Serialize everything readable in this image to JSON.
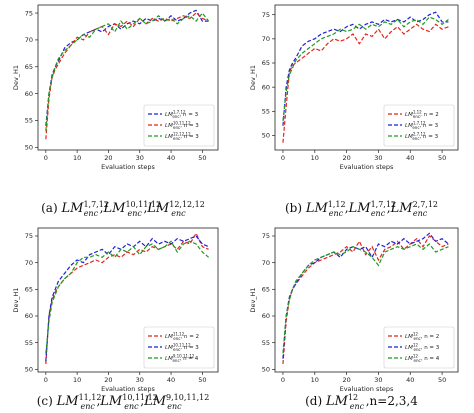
{
  "chart_data": [
    {
      "type": "line",
      "xlabel": "Evaluation steps",
      "ylabel": "Dev_H1",
      "legend": "lower right",
      "caption": {
        "label": "(a)",
        "parts": [
          {
            "base": "LM",
            "sup": "1,7,12",
            "sub": "enc"
          },
          {
            "text": ","
          },
          {
            "base": "LM",
            "sup": "10,11,12",
            "sub": "enc"
          },
          {
            "text": ","
          },
          {
            "base": "LM",
            "sup": "12,12,12",
            "sub": "enc"
          }
        ]
      },
      "xlim": [
        -2.5,
        55
      ],
      "ylim": [
        49.5,
        76.5
      ],
      "xticks": [
        0,
        10,
        20,
        30,
        40,
        50
      ],
      "yticks": [
        50,
        55,
        60,
        65,
        70,
        75
      ],
      "x": [
        0,
        1,
        2,
        3,
        4,
        6,
        8,
        10,
        12,
        14,
        16,
        18,
        20,
        22,
        24,
        26,
        28,
        30,
        32,
        34,
        36,
        38,
        40,
        42,
        44,
        46,
        48,
        50,
        52
      ],
      "series": [
        {
          "name": "LM",
          "sub": "enc",
          "sup": "1,7,12",
          "note": ", n = 3",
          "color": "#1f1fd6",
          "values": [
            54,
            60,
            63.5,
            65,
            66,
            68.5,
            69.5,
            70,
            71,
            71.5,
            72,
            71.5,
            72.5,
            73,
            72,
            73,
            73.5,
            73,
            74,
            73.5,
            74,
            73.5,
            74.5,
            73.5,
            74,
            75,
            75.5,
            73.5,
            73.5
          ]
        },
        {
          "name": "LM",
          "sub": "enc",
          "sup": "10,11,12",
          "note": ", n = 3",
          "color": "#e0261c",
          "values": [
            51.5,
            59,
            63,
            64.5,
            65.5,
            67.5,
            69,
            70.5,
            70,
            71.5,
            72,
            72.5,
            71,
            73,
            72.5,
            73.5,
            72.5,
            74,
            73,
            74,
            73.5,
            74,
            73.5,
            74,
            74.5,
            74,
            75,
            74,
            73.5
          ]
        },
        {
          "name": "LM",
          "sub": "enc",
          "sup": "12,12,12",
          "note": ", n = 3",
          "color": "#1f9a1f",
          "values": [
            53,
            60,
            63,
            65,
            66.5,
            68,
            69,
            70,
            71,
            70.5,
            72,
            72.5,
            73,
            71.5,
            73.5,
            72,
            73,
            74,
            73,
            73.5,
            74.5,
            73.5,
            74,
            73,
            74,
            74.5,
            73.5,
            75,
            73.5
          ]
        }
      ]
    },
    {
      "type": "line",
      "xlabel": "Evaluation steps",
      "ylabel": "Dev_H1",
      "legend": "lower right",
      "caption": {
        "label": "(b)",
        "parts": [
          {
            "base": "LM",
            "sup": "1,12",
            "sub": "enc"
          },
          {
            "text": ","
          },
          {
            "base": "LM",
            "sup": "1,7,12",
            "sub": "enc"
          },
          {
            "text": ","
          },
          {
            "base": "LM",
            "sup": "2,7,12",
            "sub": "enc"
          }
        ]
      },
      "xlim": [
        -2.5,
        55
      ],
      "ylim": [
        47,
        77
      ],
      "xticks": [
        0,
        10,
        20,
        30,
        40,
        50
      ],
      "yticks": [
        50,
        55,
        60,
        65,
        70,
        75
      ],
      "x": [
        0,
        1,
        2,
        3,
        4,
        6,
        8,
        10,
        12,
        14,
        16,
        18,
        20,
        22,
        24,
        26,
        28,
        30,
        32,
        34,
        36,
        38,
        40,
        42,
        44,
        46,
        48,
        50,
        52
      ],
      "series": [
        {
          "name": "LM",
          "sub": "enc",
          "sup": "1,12",
          "note": ", n = 2",
          "color": "#e0261c",
          "values": [
            48.5,
            56,
            63,
            64.5,
            65,
            66,
            67,
            68,
            67.5,
            69,
            70,
            69.5,
            70,
            71,
            69,
            71,
            70.5,
            72,
            70,
            71.5,
            72.5,
            71,
            72,
            73,
            72,
            71.5,
            73,
            72,
            72.5
          ]
        },
        {
          "name": "LM",
          "sub": "enc",
          "sup": "1,7,12",
          "note": ", n = 3",
          "color": "#1f1fd6",
          "values": [
            52,
            60,
            63.5,
            65,
            66,
            68.5,
            69.5,
            70,
            71,
            71.5,
            72,
            71.5,
            72.5,
            73,
            72,
            73,
            73.5,
            73,
            74,
            73.5,
            74,
            73.5,
            74.5,
            73.5,
            74,
            75,
            75.5,
            73.5,
            73.5
          ]
        },
        {
          "name": "LM",
          "sub": "enc",
          "sup": "2,7,12",
          "note": ", n = 3",
          "color": "#1f9a1f",
          "values": [
            53,
            59,
            62.5,
            64,
            65.5,
            67,
            68,
            69,
            70,
            70.5,
            71,
            72,
            71.5,
            72,
            73,
            72,
            73,
            72.5,
            73.5,
            73,
            74,
            72.5,
            73.5,
            74,
            73,
            74.5,
            74,
            73,
            74
          ]
        }
      ]
    },
    {
      "type": "line",
      "xlabel": "Evaluation steps",
      "ylabel": "Dev_H1",
      "legend": "lower right",
      "caption": {
        "label": "(c)",
        "parts": [
          {
            "base": "LM",
            "sup": "11,12",
            "sub": "enc"
          },
          {
            "text": ","
          },
          {
            "base": "LM",
            "sup": "10,11,12",
            "sub": "enc"
          },
          {
            "text": ","
          },
          {
            "base": "LM",
            "sup": "9,10,11,12",
            "sub": "enc"
          }
        ]
      },
      "xlim": [
        -2.5,
        55
      ],
      "ylim": [
        49.5,
        76.5
      ],
      "xticks": [
        0,
        10,
        20,
        30,
        40,
        50
      ],
      "yticks": [
        50,
        55,
        60,
        65,
        70,
        75
      ],
      "x": [
        0,
        1,
        2,
        3,
        4,
        6,
        8,
        10,
        12,
        14,
        16,
        18,
        20,
        22,
        24,
        26,
        28,
        30,
        32,
        34,
        36,
        38,
        40,
        42,
        44,
        46,
        48,
        50,
        52
      ],
      "series": [
        {
          "name": "LM",
          "sub": "enc",
          "sup": "11,12",
          "note": ", n = 2",
          "color": "#e0261c",
          "values": [
            51,
            60,
            63,
            64.5,
            65.5,
            67,
            68,
            69,
            69.5,
            70,
            70.5,
            70,
            71,
            71.5,
            71,
            72,
            71.5,
            72.5,
            72,
            73,
            72.5,
            73,
            73.5,
            72.5,
            74,
            73.5,
            75.5,
            73,
            72.5
          ]
        },
        {
          "name": "LM",
          "sub": "enc",
          "sup": "10,11,12",
          "note": ", n = 3",
          "color": "#1f1fd6",
          "values": [
            51.5,
            60,
            63.5,
            65,
            66.5,
            68,
            69.5,
            70.5,
            70,
            71.5,
            72,
            72.5,
            71.5,
            73,
            72.5,
            73.5,
            73,
            74,
            73,
            74.5,
            73.5,
            74,
            73.5,
            74.5,
            74,
            74.5,
            75,
            73.5,
            73
          ]
        },
        {
          "name": "LM",
          "sub": "enc",
          "sup": "9,10,11,12",
          "note": ", n = 4",
          "color": "#1f9a1f",
          "values": [
            53,
            59,
            62.5,
            64,
            65.5,
            67,
            68,
            70,
            71,
            71,
            71.5,
            71,
            72,
            71,
            72.5,
            72,
            73,
            71.5,
            73,
            73.5,
            72.5,
            73,
            74,
            72,
            73.5,
            74,
            73.5,
            72,
            71
          ]
        }
      ]
    },
    {
      "type": "line",
      "xlabel": "Evaluation steps",
      "ylabel": "Dev_H1",
      "legend": "lower right",
      "caption": {
        "label": "(d)",
        "parts": [
          {
            "base": "LM",
            "sup": "12",
            "sub": "enc"
          },
          {
            "text": ",n=2,3,4"
          }
        ]
      },
      "xlim": [
        -2.5,
        55
      ],
      "ylim": [
        49.5,
        76.5
      ],
      "xticks": [
        0,
        10,
        20,
        30,
        40,
        50
      ],
      "yticks": [
        50,
        55,
        60,
        65,
        70,
        75
      ],
      "x": [
        0,
        1,
        2,
        3,
        4,
        6,
        8,
        10,
        12,
        14,
        16,
        18,
        20,
        22,
        24,
        26,
        28,
        30,
        32,
        34,
        36,
        38,
        40,
        42,
        44,
        46,
        48,
        50,
        52
      ],
      "series": [
        {
          "name": "LM",
          "sub": "enc",
          "sup": "12",
          "note": ", n = 2",
          "color": "#e0261c",
          "values": [
            51,
            59,
            63,
            65,
            66,
            67.5,
            69,
            70,
            70.5,
            71,
            71.5,
            72,
            73,
            72,
            74,
            71.5,
            73,
            70.5,
            72.5,
            73,
            74,
            72.5,
            73.5,
            74.5,
            73,
            75,
            74,
            73,
            73.5
          ]
        },
        {
          "name": "LM",
          "sub": "enc",
          "sup": "12",
          "note": ", n = 3",
          "color": "#1f1fd6",
          "values": [
            52,
            60,
            63.5,
            65,
            66,
            68,
            69.5,
            70,
            71,
            71.5,
            72,
            71,
            72.5,
            73,
            72.5,
            73,
            71,
            73.5,
            73,
            74,
            73.5,
            74.5,
            73.5,
            74,
            74.5,
            75.5,
            74,
            74.5,
            73.5
          ]
        },
        {
          "name": "LM",
          "sub": "enc",
          "sup": "12",
          "note": ", n = 4",
          "color": "#1f9a1f",
          "values": [
            53,
            60,
            63,
            65,
            66.5,
            68,
            69.5,
            70.5,
            71,
            71.5,
            72,
            71.5,
            72,
            73,
            72.5,
            72,
            71,
            69.5,
            72,
            72.5,
            73,
            72.5,
            73,
            73.5,
            72.5,
            73.5,
            72,
            72.5,
            73
          ]
        }
      ]
    }
  ]
}
